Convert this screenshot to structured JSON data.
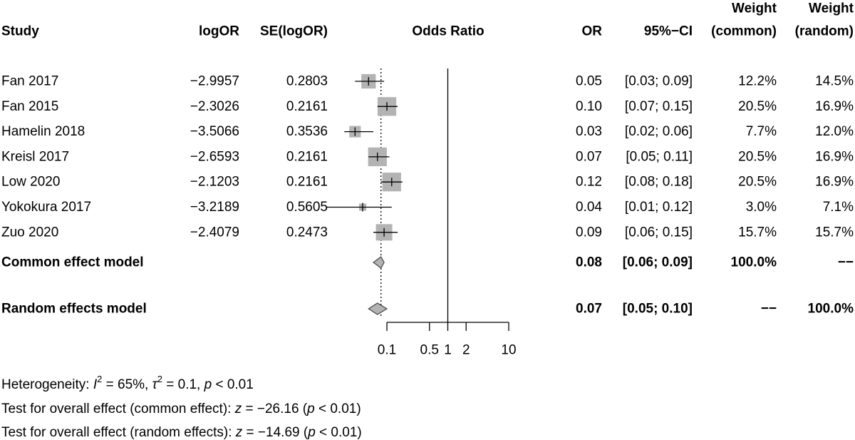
{
  "chart_data": {
    "type": "forest",
    "headers": {
      "study": "Study",
      "logor": "logOR",
      "se": "SE(logOR)",
      "plot": "Odds Ratio",
      "or": "OR",
      "ci": "95%−CI",
      "weight_common": [
        "Weight",
        "(common)"
      ],
      "weight_random": [
        "Weight",
        "(random)"
      ]
    },
    "categories": [
      "Fan 2017",
      "Fan 2015",
      "Hamelin 2018",
      "Kreisl 2017",
      "Low 2020",
      "Yokokura 2017",
      "Zuo 2020"
    ],
    "logor": [
      "−2.9957",
      "−2.3026",
      "−3.5066",
      "−2.6593",
      "−2.1203",
      "−3.2189",
      "−2.4079"
    ],
    "se": [
      0.2803,
      0.2161,
      0.3536,
      0.2161,
      0.2161,
      0.5605,
      0.2473
    ],
    "values": [
      0.05,
      0.1,
      0.03,
      0.07,
      0.12,
      0.04,
      0.09
    ],
    "value_labels": [
      "0.05",
      "0.10",
      "0.03",
      "0.07",
      "0.12",
      "0.04",
      "0.09"
    ],
    "ci_lower": [
      0.03,
      0.07,
      0.02,
      0.05,
      0.08,
      0.01,
      0.06
    ],
    "ci_upper": [
      0.09,
      0.15,
      0.06,
      0.11,
      0.18,
      0.12,
      0.15
    ],
    "ci_labels": [
      "[0.03; 0.09]",
      "[0.07; 0.15]",
      "[0.02; 0.06]",
      "[0.05; 0.11]",
      "[0.08; 0.18]",
      "[0.01; 0.12]",
      "[0.06; 0.15]"
    ],
    "weight_common": {
      "values": [
        12.2,
        20.5,
        7.7,
        20.5,
        20.5,
        3.0,
        15.7
      ],
      "value_labels": [
        "12.2%",
        "20.5%",
        "7.7%",
        "20.5%",
        "20.5%",
        "3.0%",
        "15.7%"
      ]
    },
    "weight_random": [
      "14.5%",
      "16.9%",
      "12.0%",
      "16.9%",
      "16.9%",
      "7.1%",
      "15.7%"
    ],
    "models": [
      {
        "name": "Common effect model",
        "value": 0.08,
        "value_label": "0.08",
        "ci_lower": 0.06,
        "ci_upper": 0.09,
        "ci_label": "[0.06; 0.09]",
        "weight_common": "100.0%",
        "weight_random": "−−"
      },
      {
        "name": "Random effects model",
        "value": 0.07,
        "value_label": "0.07",
        "ci_lower": 0.05,
        "ci_upper": 0.1,
        "ci_label": "[0.05; 0.10]",
        "weight_common": "−−",
        "weight_random": "100.0%"
      }
    ],
    "log_x": true,
    "xlim": [
      0.1,
      10
    ],
    "xticks": [
      0.1,
      0.5,
      1,
      2,
      10
    ],
    "reference_line": 1,
    "color": "#b3b3b3",
    "footnotes": [
      [
        "Heterogeneity: ",
        "I",
        "2",
        " = 65%,  ",
        "τ",
        "2",
        " = 0.1, ",
        "p",
        " < 0.01"
      ],
      [
        "Test for overall effect (common effect): ",
        "z",
        " = −26.16 (",
        "p",
        " < 0.01)"
      ],
      [
        "Test for overall effect (random effects): ",
        "z",
        " = −14.69 (",
        "p",
        " < 0.01)"
      ]
    ]
  }
}
